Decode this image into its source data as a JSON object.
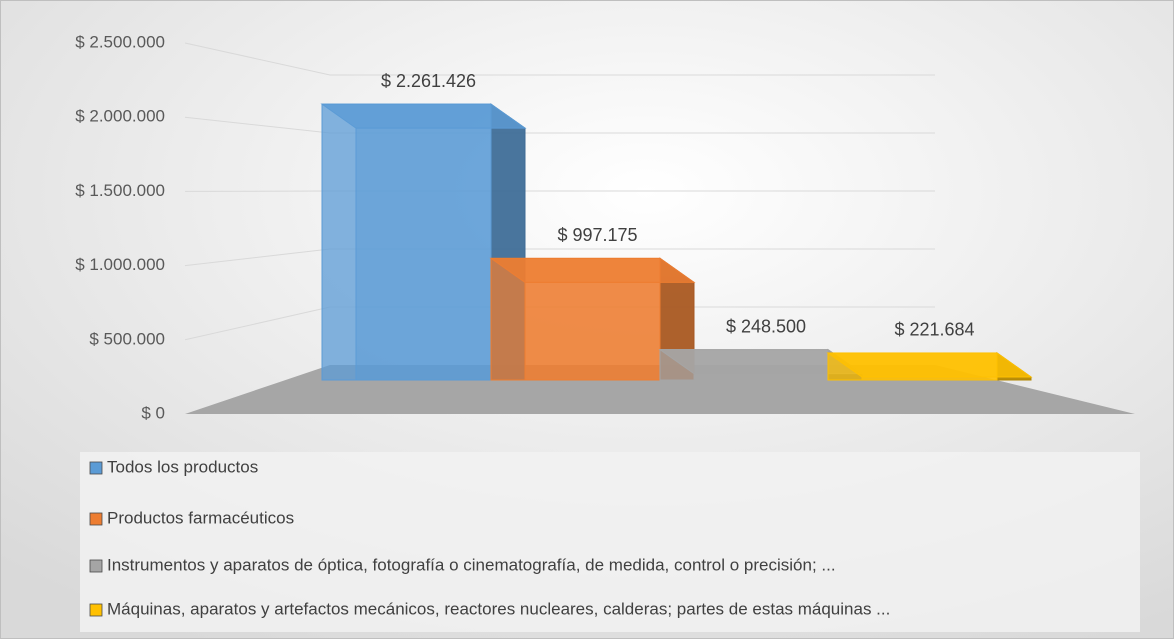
{
  "chart_data": {
    "type": "bar",
    "categories": [
      null
    ],
    "series": [
      {
        "name": "Todos los productos",
        "color": "#5b9bd5",
        "values": [
          2261426
        ],
        "value_labels": [
          "$ 2.261.426"
        ]
      },
      {
        "name": "Productos farmacéuticos",
        "color": "#ed7d31",
        "values": [
          997175
        ],
        "value_labels": [
          "$ 997.175"
        ]
      },
      {
        "name": "Instrumentos y aparatos de óptica, fotografía o cinematografía, de medida, control o precisión; ...",
        "color": "#a5a5a5",
        "values": [
          248500
        ],
        "value_labels": [
          "$ 248.500"
        ]
      },
      {
        "name": "Máquinas, aparatos y artefactos mecánicos, reactores nucleares, calderas; partes de estas máquinas ...",
        "color": "#ffc000",
        "values": [
          221684
        ],
        "value_labels": [
          "$ 221.684"
        ]
      }
    ],
    "ylim": [
      0,
      2500000
    ],
    "yticks": [
      {
        "value": 0,
        "label": "$ 0"
      },
      {
        "value": 500000,
        "label": "$ 500.000"
      },
      {
        "value": 1000000,
        "label": "$ 1.000.000"
      },
      {
        "value": 1500000,
        "label": "$ 1.500.000"
      },
      {
        "value": 2000000,
        "label": "$ 2.000.000"
      },
      {
        "value": 2500000,
        "label": "$ 2.500.000"
      }
    ],
    "grid": true,
    "legend": "bottom"
  }
}
